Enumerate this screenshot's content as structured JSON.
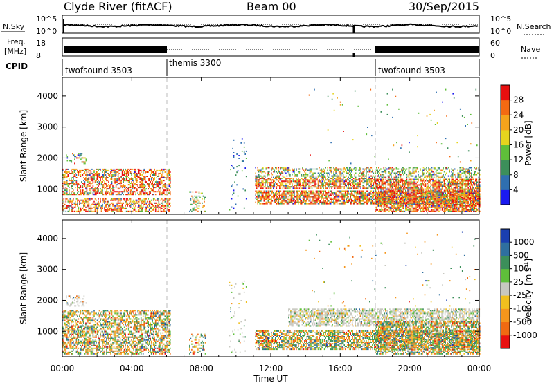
{
  "header": {
    "left": "Clyde River (fitACF)",
    "center": "Beam 00",
    "right": "30/Sep/2015"
  },
  "strip_labels": {
    "nsky": "N.Sky",
    "nsky_ticks": [
      "10^5",
      "10^0"
    ],
    "nsearch": "N.Search",
    "freq_line1": "Freq.",
    "freq_line2": "[MHz]",
    "freq_ticks": [
      "18",
      "8"
    ],
    "nave": "Nave",
    "nave_ticks": [
      "60",
      "0"
    ],
    "cpid": "CPID"
  },
  "cpid_segments": [
    {
      "label": "twofsound 3503",
      "start_hour": 0,
      "end_hour": 6
    },
    {
      "label": "themis 3300",
      "start_hour": 6,
      "end_hour": 18
    },
    {
      "label": "twofsound 3503",
      "start_hour": 18,
      "end_hour": 24
    }
  ],
  "chart_data": [
    {
      "type": "heatmap",
      "panel": "power",
      "ylabel": "Slant Range [km]",
      "xlabel": "",
      "xlim": [
        0,
        24
      ],
      "ylim": [
        180,
        4600
      ],
      "y_ticks": [
        "1000",
        "2000",
        "3000",
        "4000"
      ],
      "y_tick_values": [
        1000,
        2000,
        3000,
        4000
      ],
      "colorbar": {
        "label": "Power [dB]",
        "ticks": [
          "4",
          "8",
          "12",
          "16",
          "20",
          "24",
          "28"
        ],
        "colors": [
          "#1a1af0",
          "#2f6fb0",
          "#3c8f5a",
          "#5fbf3a",
          "#e6d41e",
          "#f5a31c",
          "#f46a12",
          "#e81010"
        ]
      }
    },
    {
      "type": "heatmap",
      "panel": "velocity",
      "ylabel": "Slant Range [km]",
      "xlabel": "Time UT",
      "xlim": [
        0,
        24
      ],
      "ylim": [
        180,
        4600
      ],
      "x_ticks": [
        "00:00",
        "04:00",
        "08:00",
        "12:00",
        "16:00",
        "20:00",
        "00:00"
      ],
      "y_ticks": [
        "1000",
        "2000",
        "3000",
        "4000"
      ],
      "y_tick_values": [
        1000,
        2000,
        3000,
        4000
      ],
      "colorbar": {
        "label": "Velocity",
        "unit": "[m s",
        "unit_exp": "-1",
        "unit_close": "]",
        "ticks": [
          "1000",
          "500",
          "100",
          "25",
          "-25",
          "-100",
          "-500",
          "-1000"
        ],
        "colors": [
          "#1a3fb0",
          "#2f6f9f",
          "#3c8f5a",
          "#5fbf3a",
          "#c8c8c0",
          "#f0c01e",
          "#f5961c",
          "#f06a12",
          "#e81010"
        ]
      }
    }
  ],
  "colors": {
    "power": [
      "#1a1af0",
      "#2f6fb0",
      "#3c8f5a",
      "#5fbf3a",
      "#e6d41e",
      "#f5a31c",
      "#f46a12",
      "#e81010"
    ],
    "velocity": [
      "#1a3fb0",
      "#2f6f9f",
      "#3c8f5a",
      "#5fbf3a",
      "#c8c8c0",
      "#f0c01e",
      "#f5961c",
      "#f06a12",
      "#e81010"
    ]
  }
}
